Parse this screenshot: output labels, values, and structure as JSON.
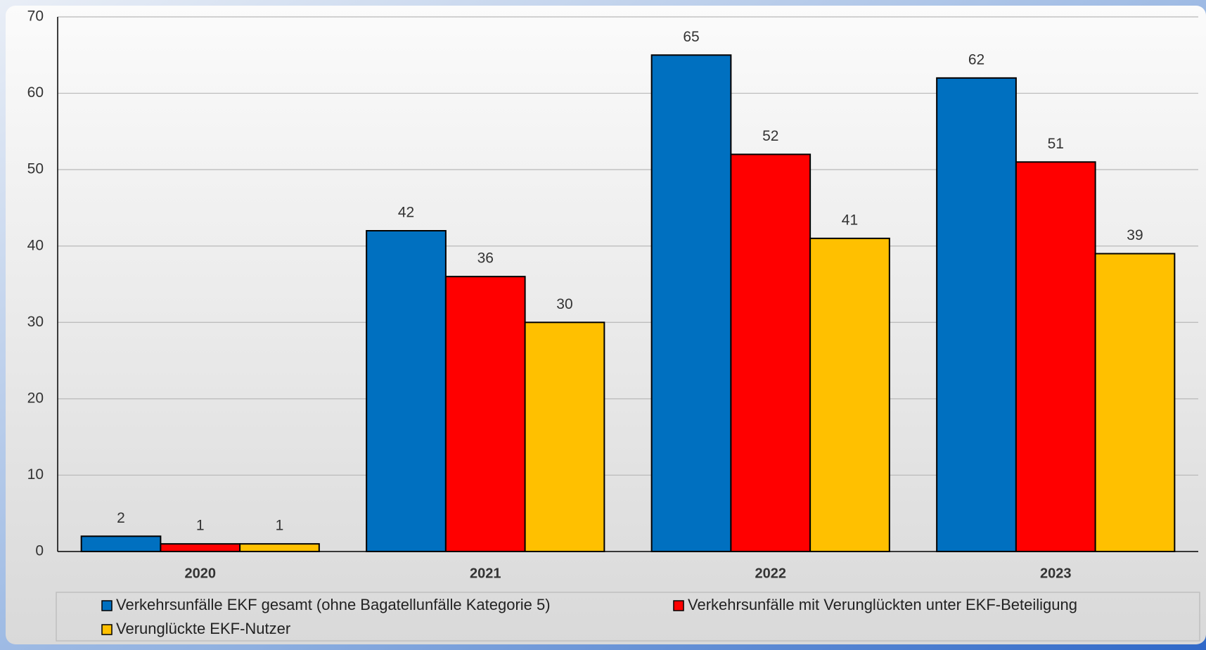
{
  "chart_data": {
    "type": "bar",
    "categories": [
      "2020",
      "2021",
      "2022",
      "2023"
    ],
    "series": [
      {
        "name": "Verkehrsunfälle EKF gesamt (ohne Bagatellunfälle Kategorie 5)",
        "color": "#0070c0",
        "values": [
          2,
          42,
          65,
          62
        ]
      },
      {
        "name": "Verkehrsunfälle mit Verunglückten unter EKF-Beteiligung",
        "color": "#ff0000",
        "values": [
          1,
          36,
          52,
          51
        ]
      },
      {
        "name": "Verunglückte EKF-Nutzer",
        "color": "#ffc000",
        "values": [
          1,
          30,
          41,
          39
        ]
      }
    ],
    "ylim": [
      0,
      70
    ],
    "yticks": [
      0,
      10,
      20,
      30,
      40,
      50,
      60,
      70
    ],
    "grid": true,
    "legend": "bottom",
    "data_labels": true
  }
}
